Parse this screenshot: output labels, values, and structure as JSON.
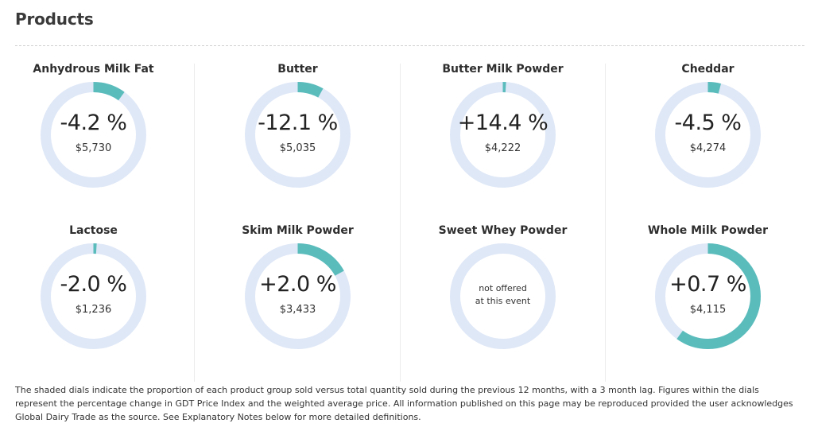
{
  "header": {
    "title": "Products"
  },
  "colors": {
    "ring_track": "#dfe8f7",
    "ring_fill": "#5bbcbc"
  },
  "products": [
    {
      "name": "Anhydrous Milk Fat",
      "change": "-4.2 %",
      "price": "$5,730",
      "share": 0.1
    },
    {
      "name": "Butter",
      "change": "-12.1 %",
      "price": "$5,035",
      "share": 0.08
    },
    {
      "name": "Butter Milk Powder",
      "change": "+14.4 %",
      "price": "$4,222",
      "share": 0.01
    },
    {
      "name": "Cheddar",
      "change": "-4.5 %",
      "price": "$4,274",
      "share": 0.04
    },
    {
      "name": "Lactose",
      "change": "-2.0 %",
      "price": "$1,236",
      "share": 0.01
    },
    {
      "name": "Skim Milk Powder",
      "change": "+2.0 %",
      "price": "$3,433",
      "share": 0.17
    },
    {
      "name": "Sweet Whey Powder",
      "change": "",
      "price": "",
      "share": 0,
      "not_offered": [
        "not offered",
        "at this event"
      ]
    },
    {
      "name": "Whole Milk Powder",
      "change": "+0.7 %",
      "price": "$4,115",
      "share": 0.6
    }
  ],
  "footnote": "The shaded dials indicate the proportion of each product group sold versus total quantity sold during the previous 12 months, with a 3 month lag. Figures within the dials represent the percentage change in GDT Price Index and the weighted average price. All information published on this page may be reproduced provided the user acknowledges Global Dairy Trade as the source. See Explanatory Notes below for more detailed definitions."
}
